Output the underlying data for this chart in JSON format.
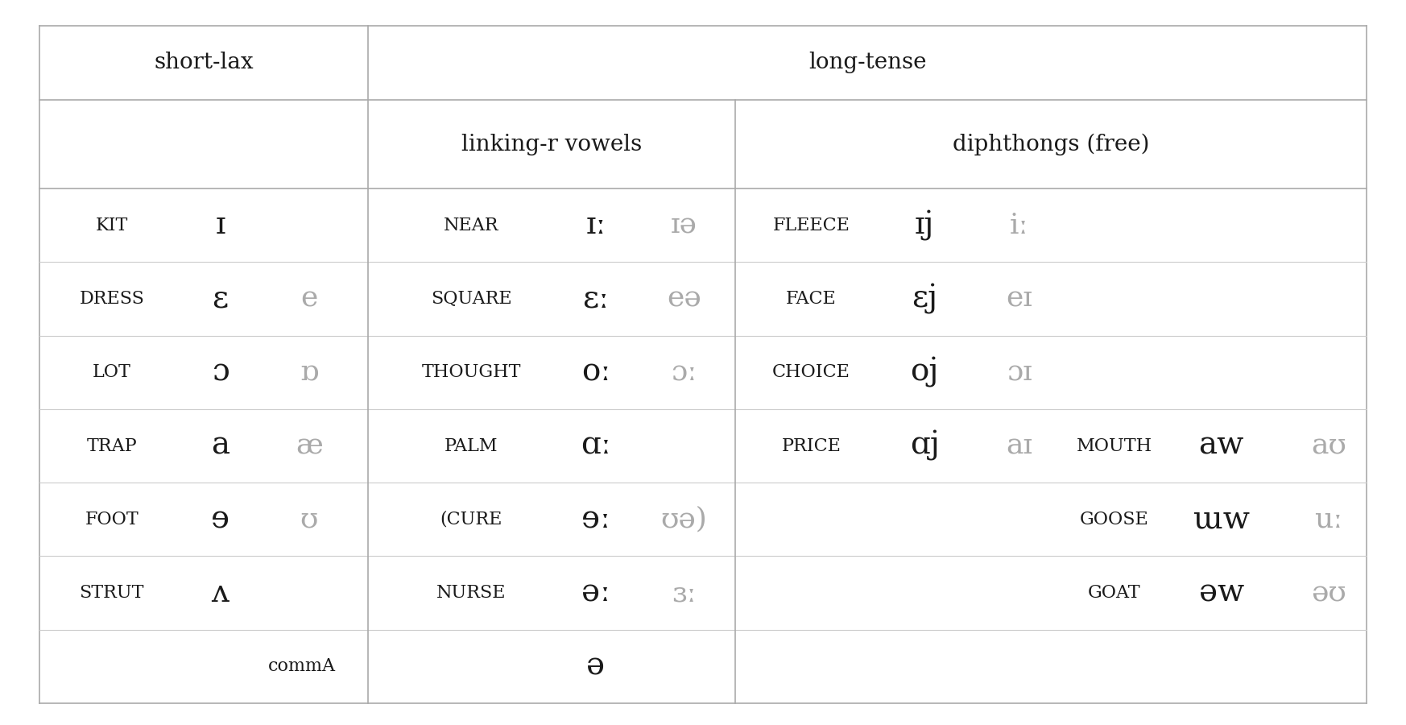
{
  "bg_color": "#ffffff",
  "border_color": "#aaaaaa",
  "border_color_thin": "#cccccc",
  "text_color_dark": "#1a1a1a",
  "text_color_gray": "#aaaaaa",
  "col_header1": "short-lax",
  "col_header2": "long-tense",
  "col_header2a": "linking-r vowels",
  "col_header2b": "diphthongs (free)",
  "rows": [
    {
      "word": "KIT",
      "ipa1": "ɪ",
      "ipa2": null,
      "word2": "NEAR",
      "ipa3": "ɪː",
      "ipa4": "ɪə",
      "word3": "FLEECE",
      "ipa5": "ɪj",
      "ipa6": "iː",
      "word4": null,
      "ipa7": null,
      "ipa8": null
    },
    {
      "word": "DRESS",
      "ipa1": "ɛ",
      "ipa2": "e",
      "word2": "SQUARE",
      "ipa3": "ɛː",
      "ipa4": "eə",
      "word3": "FACE",
      "ipa5": "ɛj",
      "ipa6": "eɪ",
      "word4": null,
      "ipa7": null,
      "ipa8": null
    },
    {
      "word": "LOT",
      "ipa1": "ɔ",
      "ipa2": "ɒ",
      "word2": "THOUGHT",
      "ipa3": "oː",
      "ipa4": "ɔː",
      "word3": "CHOICE",
      "ipa5": "oj",
      "ipa6": "ɔɪ",
      "word4": null,
      "ipa7": null,
      "ipa8": null
    },
    {
      "word": "TRAP",
      "ipa1": "a",
      "ipa2": "æ",
      "word2": "PALM",
      "ipa3": "ɑː",
      "ipa4": null,
      "word3": "PRICE",
      "ipa5": "ɑj",
      "ipa6": "aɪ",
      "word4": "MOUTH",
      "ipa7": "aw",
      "ipa8": "aʊ"
    },
    {
      "word": "FOOT",
      "ipa1": "ɘ",
      "ipa2": "ʊ",
      "word2": "(CURE",
      "ipa3": "ɘː",
      "ipa4": "ʊə)",
      "word3": null,
      "ipa5": null,
      "ipa6": null,
      "word4": "GOOSE",
      "ipa7": "ɯw",
      "ipa8": "uː"
    },
    {
      "word": "STRUT",
      "ipa1": "ʌ",
      "ipa2": null,
      "word2": "NURSE",
      "ipa3": "əː",
      "ipa4": "ɜː",
      "word3": null,
      "ipa5": null,
      "ipa6": null,
      "word4": "GOAT",
      "ipa7": "əw",
      "ipa8": "əʊ"
    },
    {
      "word": null,
      "ipa1": null,
      "ipa2": null,
      "word_special": "commA",
      "ipa_special": "ə",
      "word2": null,
      "ipa3": null,
      "ipa4": null,
      "word3": null,
      "ipa5": null,
      "ipa6": null,
      "word4": null,
      "ipa7": null,
      "ipa8": null
    }
  ],
  "fs_header": 20,
  "fs_word": 16,
  "fs_ipa": 28,
  "fs_ipa_gray": 26
}
